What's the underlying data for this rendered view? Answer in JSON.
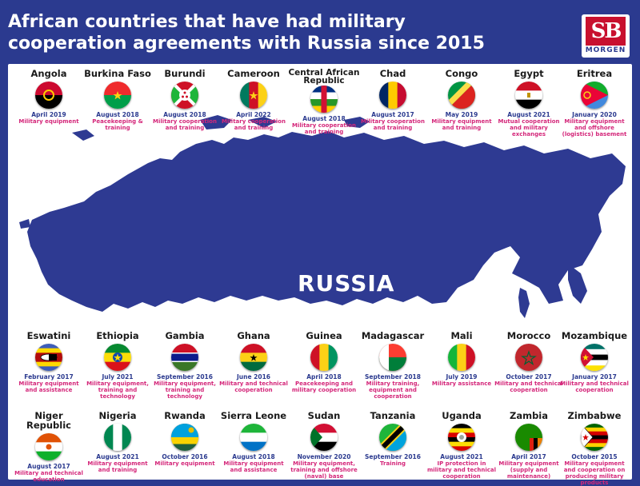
{
  "title_line1": "African countries that have had military",
  "title_line2": "cooperation agreements with Russia since 2015",
  "logo": {
    "mark": "SB",
    "sub": "MORGEN"
  },
  "map_label": "RUSSIA",
  "colors": {
    "navy": "#2b3a8f",
    "date": "#2b3a8f",
    "desc": "#d4277a",
    "map": "#2e3a92"
  },
  "row1": [
    {
      "name": "Angola",
      "date": "April 2019",
      "desc": "Military equipment",
      "flag": "angola"
    },
    {
      "name": "Burkina Faso",
      "date": "August 2018",
      "desc": "Peacekeeping & training",
      "flag": "burkina"
    },
    {
      "name": "Burundi",
      "date": "August 2018",
      "desc": "Military cooperation and training",
      "flag": "burundi"
    },
    {
      "name": "Cameroon",
      "date": "April 2022",
      "desc": "Military cooperation and training",
      "flag": "cameroon"
    },
    {
      "name": "Central African Republic",
      "date": "August 2018",
      "desc": "Military cooperation and training",
      "flag": "car"
    },
    {
      "name": "Chad",
      "date": "August 2017",
      "desc": "Military cooperation and training",
      "flag": "chad"
    },
    {
      "name": "Congo",
      "date": "May 2019",
      "desc": "Military equipment and training",
      "flag": "congo"
    },
    {
      "name": "Egypt",
      "date": "August 2021",
      "desc": "Mutual cooperation and military exchanges",
      "flag": "egypt"
    },
    {
      "name": "Eritrea",
      "date": "January 2020",
      "desc": "Military equipment and offshore (logistics) basement",
      "flag": "eritrea"
    }
  ],
  "row2": [
    {
      "name": "Eswatini",
      "date": "February 2017",
      "desc": "Military equipment and assistance",
      "flag": "eswatini"
    },
    {
      "name": "Ethiopia",
      "date": "July 2021",
      "desc": "Military equipment, training and technology",
      "flag": "ethiopia"
    },
    {
      "name": "Gambia",
      "date": "September 2016",
      "desc": "Military equipment, training and technology",
      "flag": "gambia"
    },
    {
      "name": "Ghana",
      "date": "June 2016",
      "desc": "Military and technical cooperation",
      "flag": "ghana"
    },
    {
      "name": "Guinea",
      "date": "April 2018",
      "desc": "Peacekeeping and military cooperation",
      "flag": "guinea"
    },
    {
      "name": "Madagascar",
      "date": "September 2018",
      "desc": "Military training, equipment and cooperation",
      "flag": "madagascar"
    },
    {
      "name": "Mali",
      "date": "July 2019",
      "desc": "Military assistance",
      "flag": "mali"
    },
    {
      "name": "Morocco",
      "date": "October 2017",
      "desc": "Military and technical cooperation",
      "flag": "morocco"
    },
    {
      "name": "Mozambique",
      "date": "January 2017",
      "desc": "Military and technical cooperation",
      "flag": "mozambique"
    }
  ],
  "row3": [
    {
      "name": "Niger Republic",
      "date": "August 2017",
      "desc": "Military and technical education",
      "flag": "niger"
    },
    {
      "name": "Nigeria",
      "date": "August 2021",
      "desc": "Military equipment and training",
      "flag": "nigeria"
    },
    {
      "name": "Rwanda",
      "date": "October 2016",
      "desc": "Military equipment",
      "flag": "rwanda"
    },
    {
      "name": "Sierra Leone",
      "date": "August 2018",
      "desc": "Military equipment and assistance",
      "flag": "sierra"
    },
    {
      "name": "Sudan",
      "date": "November 2020",
      "desc": "Military equipment, training and offshore (naval) base",
      "flag": "sudan"
    },
    {
      "name": "Tanzania",
      "date": "September 2016",
      "desc": "Training",
      "flag": "tanzania"
    },
    {
      "name": "Uganda",
      "date": "August 2021",
      "desc": "IP protection in military and technical cooperation",
      "flag": "uganda"
    },
    {
      "name": "Zambia",
      "date": "April 2017",
      "desc": "Military equipment (supply and maintenance)",
      "flag": "zambia"
    },
    {
      "name": "Zimbabwe",
      "date": "October 2015",
      "desc": "Military equipment and cooperation on producing military products",
      "flag": "zimbabwe"
    }
  ]
}
